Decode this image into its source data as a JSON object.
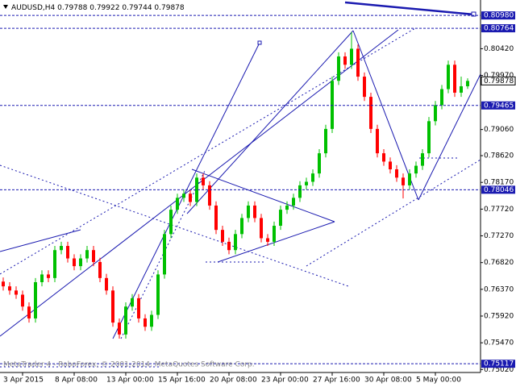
{
  "chart_data": {
    "type": "candlestick",
    "symbol": "AUDUSD,H4",
    "footer": "MetaTrader 4 - RoboForex, © 2001-2014, MetaQuotes Software Corp.",
    "categories": [
      null,
      null,
      null,
      "3 Apr 2015",
      null,
      null,
      null,
      null,
      null,
      null,
      null,
      "8 Apr 08:00",
      null,
      null,
      null,
      null,
      null,
      null,
      null,
      "13 Apr 00:00",
      null,
      null,
      null,
      null,
      null,
      null,
      null,
      "15 Apr 16:00",
      null,
      null,
      null,
      null,
      null,
      null,
      null,
      "20 Apr 08:00",
      null,
      null,
      null,
      null,
      null,
      null,
      null,
      "23 Apr 00:00",
      null,
      null,
      null,
      null,
      null,
      null,
      null,
      "27 Apr 16:00",
      null,
      null,
      null,
      null,
      null,
      null,
      null,
      "30 Apr 08:00",
      null,
      null,
      null,
      null,
      null,
      null,
      null,
      "5 May 00:00",
      null,
      null,
      null,
      null,
      null
    ],
    "open": [
      0.765,
      0.7642,
      0.7635,
      0.7628,
      0.7608,
      0.7588,
      0.7649,
      0.7662,
      0.7656,
      0.7703,
      0.771,
      0.7689,
      0.7676,
      0.7689,
      0.7703,
      0.7683,
      0.7656,
      0.7635,
      0.7581,
      0.7561,
      0.7608,
      0.7622,
      0.7588,
      0.7574,
      0.7594,
      0.7662,
      0.773,
      0.7771,
      0.7791,
      0.7798,
      0.7784,
      0.7825,
      0.7812,
      0.7778,
      0.7737,
      0.7717,
      0.7703,
      0.773,
      0.7757,
      0.7778,
      0.7757,
      0.7723,
      0.7717,
      0.7744,
      0.7771,
      0.7778,
      0.7791,
      0.7812,
      0.7818,
      0.7832,
      0.7866,
      0.7907,
      0.7988,
      0.8029,
      0.8015,
      0.8042,
      0.7995,
      0.7961,
      0.7907,
      0.7866,
      0.7852,
      0.7839,
      0.7825,
      0.7812,
      0.7832,
      0.7845,
      0.7866,
      0.792,
      0.7947,
      0.7974,
      0.8015,
      0.7968,
      0.79788
    ],
    "high": [
      0.7657,
      0.7649,
      0.7642,
      0.7635,
      0.7615,
      0.7656,
      0.7669,
      0.7669,
      0.771,
      0.7717,
      0.7717,
      0.7696,
      0.7696,
      0.771,
      0.771,
      0.769,
      0.7663,
      0.7642,
      0.7588,
      0.7615,
      0.7629,
      0.7629,
      0.7595,
      0.7601,
      0.7669,
      0.7737,
      0.7778,
      0.7798,
      0.7805,
      0.7805,
      0.7832,
      0.7832,
      0.7819,
      0.7785,
      0.7744,
      0.7724,
      0.7737,
      0.7764,
      0.7785,
      0.7785,
      0.7764,
      0.773,
      0.7751,
      0.7778,
      0.7785,
      0.7798,
      0.7819,
      0.7825,
      0.7839,
      0.7873,
      0.7914,
      0.7995,
      0.8036,
      0.8036,
      0.807,
      0.8049,
      0.8002,
      0.7968,
      0.7914,
      0.7873,
      0.7859,
      0.7846,
      0.7832,
      0.7839,
      0.7852,
      0.7873,
      0.7927,
      0.7954,
      0.7981,
      0.8022,
      0.8022,
      0.7995,
      0.79922
    ],
    "low": [
      0.7635,
      0.7628,
      0.7621,
      0.7601,
      0.7581,
      0.7581,
      0.7642,
      0.7649,
      0.7649,
      0.7696,
      0.7682,
      0.7669,
      0.7669,
      0.7682,
      0.7676,
      0.7649,
      0.7628,
      0.7574,
      0.7554,
      0.7554,
      0.7601,
      0.7581,
      0.7567,
      0.7567,
      0.7587,
      0.7655,
      0.7723,
      0.7764,
      0.7784,
      0.7777,
      0.7777,
      0.7805,
      0.7771,
      0.773,
      0.771,
      0.7696,
      0.7696,
      0.7723,
      0.775,
      0.775,
      0.7716,
      0.771,
      0.771,
      0.7737,
      0.7764,
      0.7771,
      0.7784,
      0.7805,
      0.7811,
      0.7825,
      0.7859,
      0.79,
      0.7981,
      0.8008,
      0.8008,
      0.7988,
      0.7954,
      0.79,
      0.7859,
      0.7845,
      0.7832,
      0.7818,
      0.779,
      0.7805,
      0.7825,
      0.7838,
      0.7859,
      0.7913,
      0.794,
      0.7967,
      0.7961,
      0.7961,
      0.79744
    ],
    "close": [
      0.7642,
      0.7635,
      0.7628,
      0.7608,
      0.7588,
      0.7649,
      0.7662,
      0.7656,
      0.7703,
      0.771,
      0.7689,
      0.7676,
      0.7689,
      0.7703,
      0.7683,
      0.7656,
      0.7635,
      0.7581,
      0.7561,
      0.7608,
      0.7622,
      0.7588,
      0.7574,
      0.7594,
      0.7662,
      0.773,
      0.7771,
      0.7791,
      0.7798,
      0.7784,
      0.7825,
      0.7812,
      0.7778,
      0.7737,
      0.7717,
      0.7703,
      0.773,
      0.7757,
      0.7778,
      0.7757,
      0.7723,
      0.7717,
      0.7744,
      0.7771,
      0.7778,
      0.7791,
      0.7812,
      0.7818,
      0.7832,
      0.7866,
      0.7907,
      0.7988,
      0.8029,
      0.8015,
      0.8042,
      0.7995,
      0.7961,
      0.7907,
      0.7866,
      0.7852,
      0.7839,
      0.7825,
      0.7812,
      0.7832,
      0.7845,
      0.7866,
      0.792,
      0.7947,
      0.7974,
      0.8015,
      0.7968,
      0.79788,
      0.79878
    ],
    "up_color": "#00c000",
    "down_color": "#ff0000",
    "ylim": [
      0.7497,
      0.8124
    ],
    "yticks": [
      {
        "value": 0.8042,
        "label": "0.80420"
      },
      {
        "value": 0.7997,
        "label": "0.79970"
      },
      {
        "value": 0.7906,
        "label": "0.79060"
      },
      {
        "value": 0.7862,
        "label": "0.78620"
      },
      {
        "value": 0.7817,
        "label": "0.78170"
      },
      {
        "value": 0.7772,
        "label": "0.77720"
      },
      {
        "value": 0.7727,
        "label": "0.77270"
      },
      {
        "value": 0.7682,
        "label": "0.76820"
      },
      {
        "value": 0.7637,
        "label": "0.76370"
      },
      {
        "value": 0.7592,
        "label": "0.75920"
      },
      {
        "value": 0.7547,
        "label": "0.75470"
      },
      {
        "value": 0.7502,
        "label": "0.75020"
      }
    ],
    "levels": [
      {
        "value": 0.8098,
        "label": "0.80980"
      },
      {
        "value": 0.80764,
        "label": "0.80764"
      },
      {
        "value": 0.79465,
        "label": "0.79465"
      },
      {
        "value": 0.78046,
        "label": "0.78046"
      },
      {
        "value": 0.75117,
        "label": "0.75117"
      }
    ],
    "level_color": "#1a1ab0"
  }
}
